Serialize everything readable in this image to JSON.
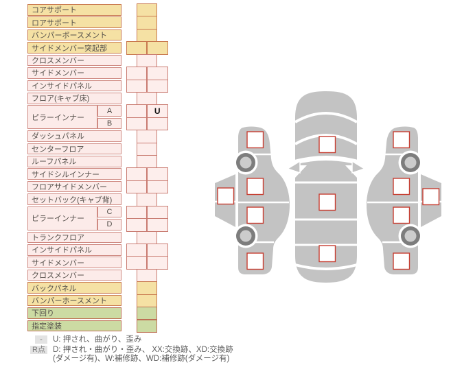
{
  "colors": {
    "marker_border": "#c63d30",
    "body_gray": "#c3c3c3",
    "wheel_ring": "#7d7d7d",
    "wheel_hub": "#cccccc",
    "yellow_bg": "#f5e1a4",
    "yellow_border": "#c9794f",
    "pink_bg": "#fcebe9",
    "pink_border": "#cf8a82",
    "pink_cell_bg": "#fdeeec",
    "pink_cell_border": "#c97b71",
    "green_bg": "#ccdba3",
    "green_border": "#bd7054",
    "label_text": "#534e49",
    "badge_bg": "#e3e3e3",
    "legend_text": "#5d5d5d"
  },
  "table": {
    "rows": [
      {
        "label": "コアサポート",
        "type": "yellow",
        "cells": 1
      },
      {
        "label": "ロアサポート",
        "type": "yellow",
        "cells": 1
      },
      {
        "label": "バンパーボースメント",
        "type": "yellow",
        "cells": 1
      },
      {
        "label": "サイドメンバー突起部",
        "type": "yellow",
        "cells": 2
      },
      {
        "label": "クロスメンバー",
        "type": "pink",
        "cells": 1
      },
      {
        "label": "サイドメンバー",
        "type": "pink",
        "cells": 2
      },
      {
        "label": "インサイドパネル",
        "type": "pink",
        "cells": 2
      },
      {
        "label": "フロア(キャブ床)",
        "type": "pink",
        "cells": 1
      },
      {
        "label": "ピラーインナー",
        "sub": "A",
        "span": 2,
        "type": "pink",
        "cells": 2,
        "mark": "U"
      },
      {
        "label": "",
        "sub": "B",
        "cont": true,
        "type": "pink",
        "cells": 2
      },
      {
        "label": "ダッシュパネル",
        "type": "pink",
        "cells": 1
      },
      {
        "label": "センターフロア",
        "type": "pink",
        "cells": 1
      },
      {
        "label": "ルーフパネル",
        "type": "pink",
        "cells": 1
      },
      {
        "label": "サイドシルインナー",
        "type": "pink",
        "cells": 2
      },
      {
        "label": "フロアサイドメンバー",
        "type": "pink",
        "cells": 2
      },
      {
        "label": "セットバック(キャブ背)",
        "type": "pink",
        "cells": 1
      },
      {
        "label": "ピラーインナー",
        "sub": "C",
        "span": 2,
        "type": "pink",
        "cells": 2
      },
      {
        "label": "",
        "sub": "D",
        "cont": true,
        "type": "pink",
        "cells": 2
      },
      {
        "label": "トランクフロア",
        "type": "pink",
        "cells": 1
      },
      {
        "label": "インサイドパネル",
        "type": "pink",
        "cells": 2
      },
      {
        "label": "サイドメンバー",
        "type": "pink",
        "cells": 2
      },
      {
        "label": "クロスメンバー",
        "type": "pink",
        "cells": 1
      },
      {
        "label": "バックパネル",
        "type": "yellow",
        "cells": 1
      },
      {
        "label": "バンパーホースメント",
        "type": "yellow",
        "cells": 1
      },
      {
        "label": "下回り",
        "type": "green",
        "cells": 1
      },
      {
        "label": "指定塗装",
        "type": "green",
        "cells": 1
      }
    ]
  },
  "diagram": {
    "marker_boxes": [
      "center-hood",
      "center-roof",
      "center-trunk",
      "left-front-fender",
      "left-front-door",
      "left-rear-door",
      "left-rear-fender",
      "left-rocker",
      "right-front-fender",
      "right-front-door",
      "right-rear-door",
      "right-rear-fender",
      "right-rocker"
    ]
  },
  "legend": {
    "rows": [
      {
        "badge": "-",
        "text": "U: 押され、曲がり、歪み"
      },
      {
        "badge": "R点",
        "text": "D: 押され・曲がり・歪み、 XX:交換跡、XD:交換跡",
        "text2": "(ダメージ有)、W:補修跡、WD:補修跡(ダメージ有)"
      }
    ]
  }
}
